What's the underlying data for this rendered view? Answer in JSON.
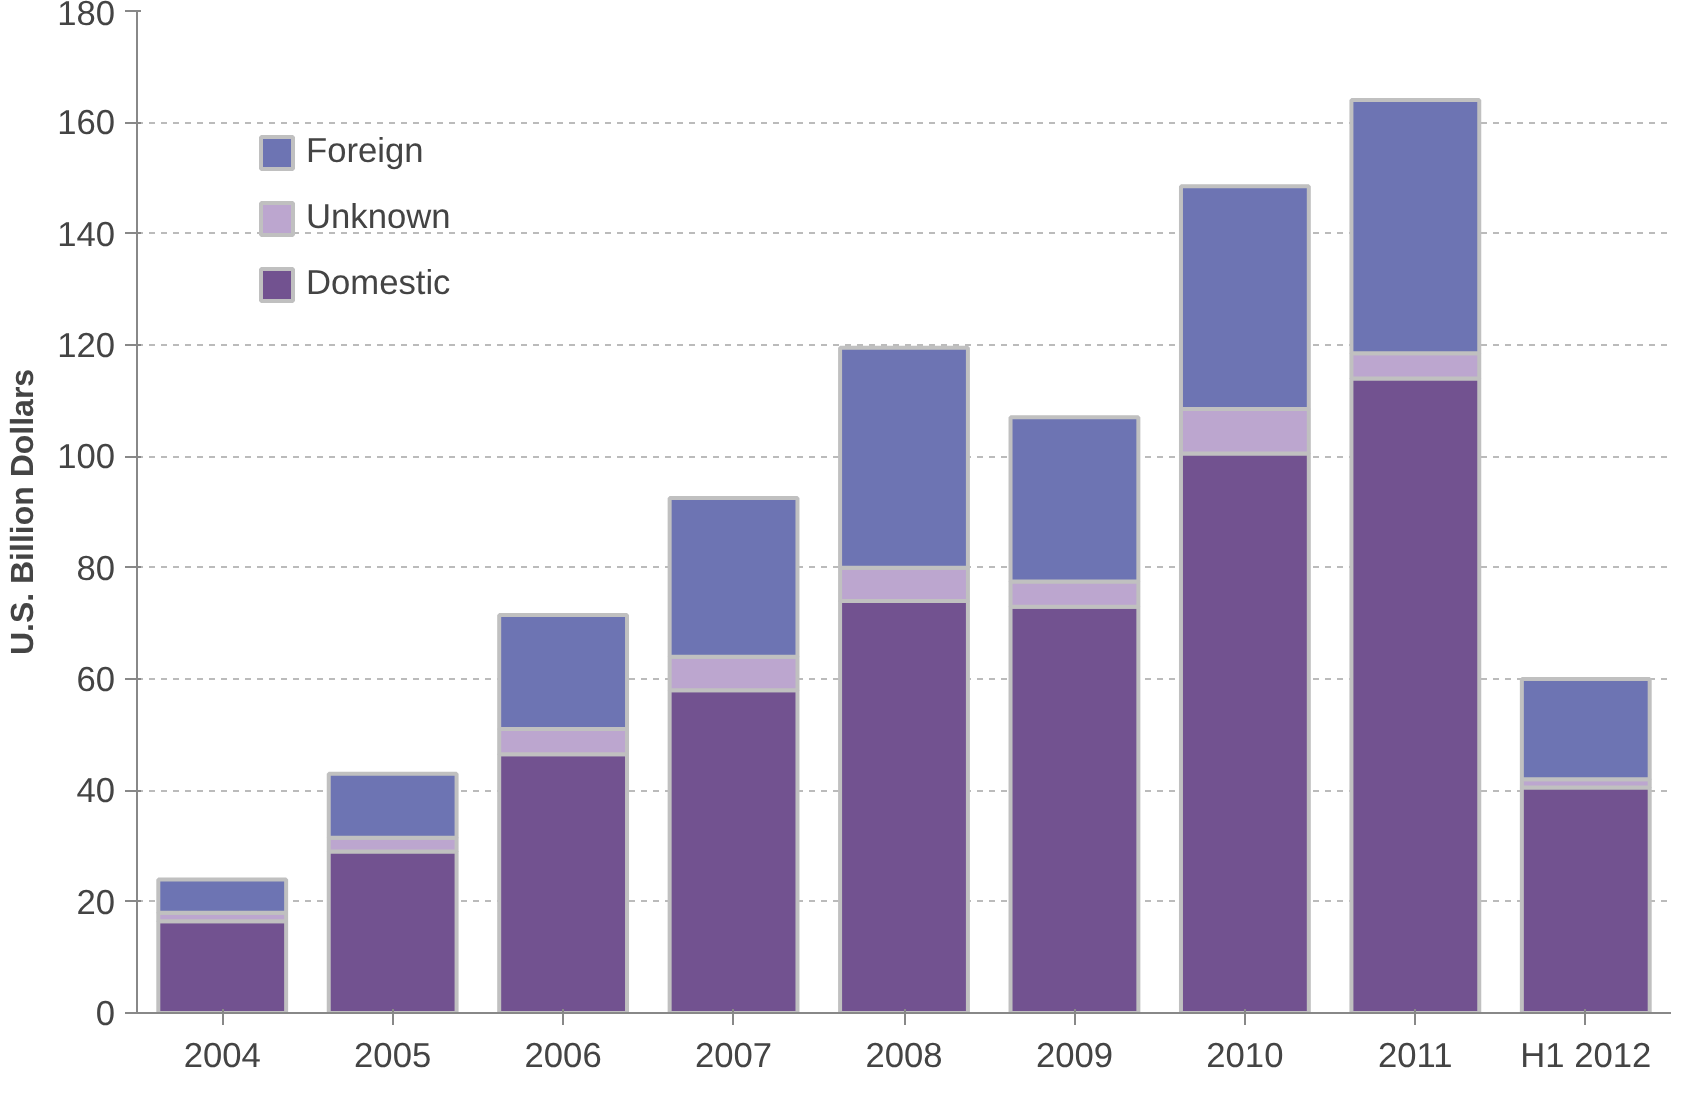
{
  "chart_data": {
    "type": "bar",
    "stacked": true,
    "ylabel": "U.S. Billion Dollars",
    "categories": [
      "2004",
      "2005",
      "2006",
      "2007",
      "2008",
      "2009",
      "2010",
      "2011",
      "H1 2012"
    ],
    "series": [
      {
        "name": "Domestic",
        "color": "#725290",
        "values": [
          16.5,
          29,
          46.5,
          58,
          74,
          73,
          100.5,
          114,
          40.5
        ]
      },
      {
        "name": "Unknown",
        "color": "#bca6cf",
        "values": [
          1.5,
          2.5,
          4.5,
          6,
          6,
          4.5,
          8,
          4.5,
          1.5
        ]
      },
      {
        "name": "Foreign",
        "color": "#6d74b3",
        "values": [
          6,
          11.5,
          20.5,
          28.5,
          39.5,
          29.5,
          40,
          45.5,
          18
        ]
      }
    ],
    "ylim": [
      0,
      180
    ],
    "yticks": [
      0,
      20,
      40,
      60,
      80,
      100,
      120,
      140,
      160,
      180
    ],
    "grid": "y",
    "legend": "top left"
  }
}
